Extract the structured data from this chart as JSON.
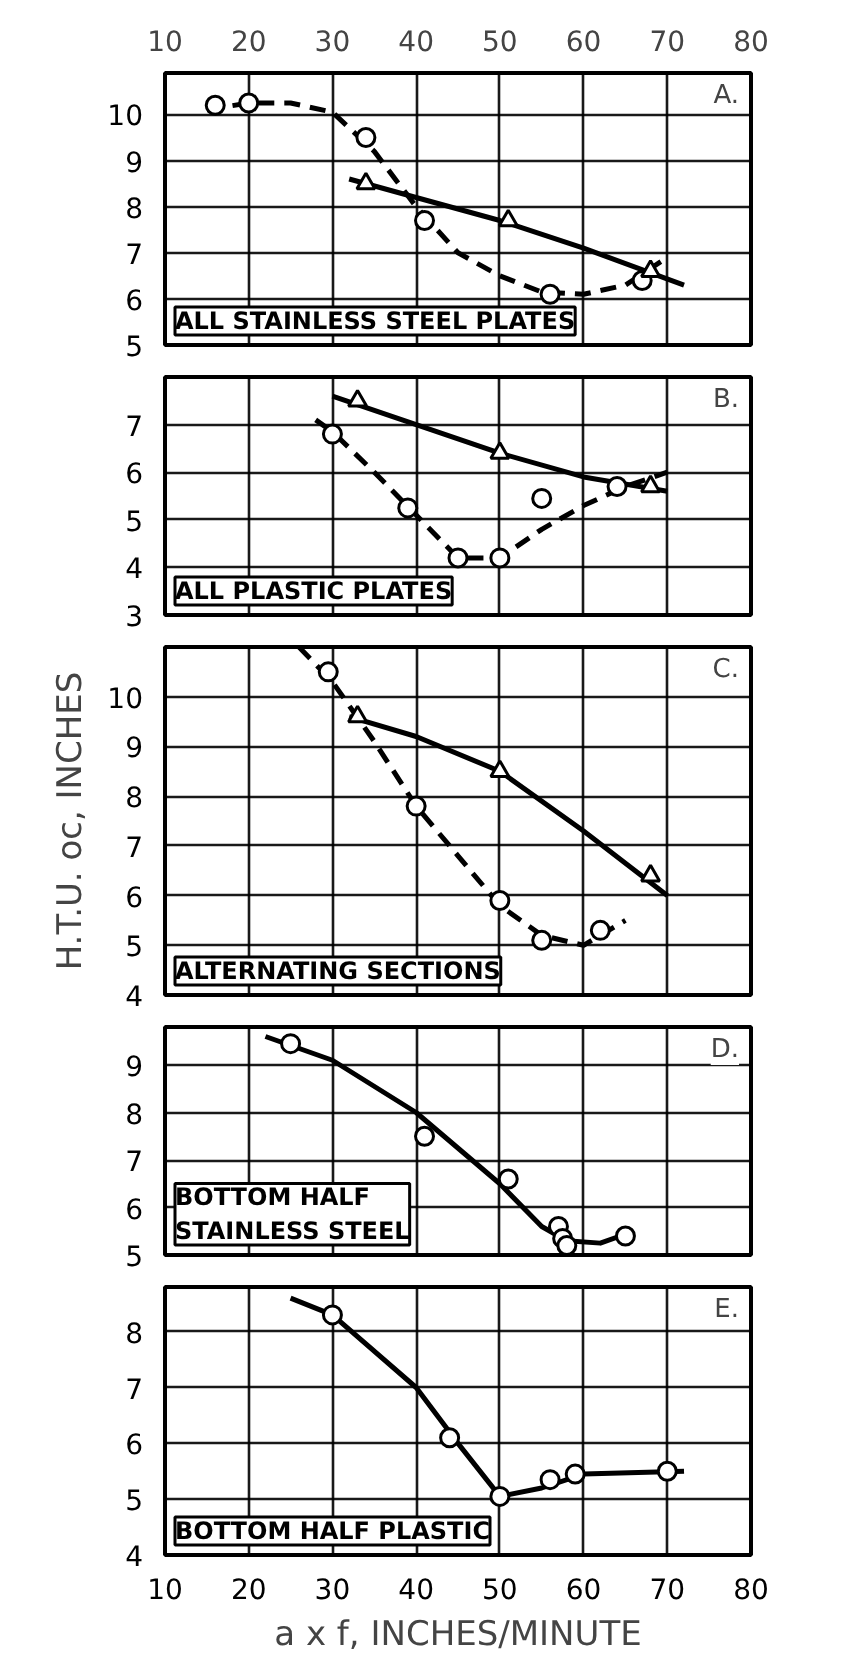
{
  "chart_data": [
    {
      "type": "scatter",
      "xlim": [
        10,
        80
      ],
      "xticks": [
        10,
        20,
        30,
        40,
        50,
        60,
        70,
        80
      ],
      "x2lim": [
        10,
        80
      ],
      "x2ticks": [
        10,
        20,
        30,
        40,
        50,
        60,
        70,
        80
      ],
      "ylim": [
        5,
        10.9
      ],
      "yticks": [
        5,
        6,
        7,
        8,
        9,
        10
      ],
      "grid": true,
      "tick_labels": "y",
      "annotations": [
        "A.",
        "ALL STAINLESS STEEL PLATES"
      ],
      "series": [
        {
          "type": "line",
          "line_style": "dashed",
          "marker": "none",
          "color": "#000000",
          "x": [
            15,
            20,
            25,
            30,
            35,
            40,
            45,
            50,
            55,
            60,
            65,
            70
          ],
          "values": [
            10.1,
            10.25,
            10.25,
            10.05,
            9.2,
            8.0,
            7.0,
            6.5,
            6.15,
            6.1,
            6.3,
            6.9
          ]
        },
        {
          "type": "line",
          "line_style": "solid",
          "marker": "none",
          "color": "#000000",
          "x": [
            32,
            40,
            50,
            60,
            72
          ],
          "values": [
            8.6,
            8.2,
            7.7,
            7.1,
            6.3
          ]
        },
        {
          "type": "scatter",
          "marker": "circle",
          "color": "#000000",
          "x": [
            16,
            20,
            34,
            41,
            56,
            67
          ],
          "values": [
            10.2,
            10.25,
            9.5,
            7.7,
            6.1,
            6.4
          ]
        },
        {
          "type": "scatter",
          "marker": "triangle",
          "color": "#000000",
          "x": [
            34,
            51,
            68
          ],
          "values": [
            8.5,
            7.7,
            6.6
          ]
        }
      ]
    },
    {
      "type": "scatter",
      "xlim": [
        10,
        80
      ],
      "xticks": [
        10,
        20,
        30,
        40,
        50,
        60,
        70,
        80
      ],
      "ylim": [
        3,
        8
      ],
      "yticks": [
        3,
        4,
        5,
        6,
        7
      ],
      "grid": true,
      "tick_labels": "y",
      "annotations": [
        "B.",
        "ALL PLASTIC PLATES"
      ],
      "series": [
        {
          "type": "line",
          "line_style": "dashed",
          "marker": "none",
          "color": "#000000",
          "x": [
            28,
            30,
            35,
            40,
            45,
            50,
            55,
            60,
            65,
            70
          ],
          "values": [
            7.1,
            6.85,
            6.0,
            5.1,
            4.2,
            4.2,
            4.8,
            5.3,
            5.7,
            6.0
          ]
        },
        {
          "type": "line",
          "line_style": "solid",
          "marker": "none",
          "color": "#000000",
          "x": [
            30,
            40,
            50,
            60,
            70
          ],
          "values": [
            7.6,
            7.0,
            6.4,
            5.9,
            5.6
          ]
        },
        {
          "type": "scatter",
          "marker": "circle",
          "color": "#000000",
          "x": [
            30,
            39,
            45,
            50,
            55,
            64
          ],
          "values": [
            6.8,
            5.25,
            4.2,
            4.2,
            5.45,
            5.7
          ]
        },
        {
          "type": "scatter",
          "marker": "triangle",
          "color": "#000000",
          "x": [
            33,
            50,
            68
          ],
          "values": [
            7.5,
            6.4,
            5.7
          ]
        }
      ]
    },
    {
      "type": "scatter",
      "xlim": [
        10,
        80
      ],
      "xticks": [
        10,
        20,
        30,
        40,
        50,
        60,
        70,
        80
      ],
      "ylim": [
        4,
        11
      ],
      "yticks": [
        4,
        5,
        6,
        7,
        8,
        9,
        10
      ],
      "grid": true,
      "tick_labels": "y",
      "ylabel": "H.T.U. oc, INCHES",
      "annotations": [
        "C.",
        "ALTERNATING SECTIONS"
      ],
      "series": [
        {
          "type": "line",
          "line_style": "dashed",
          "marker": "none",
          "color": "#000000",
          "x": [
            26,
            30,
            35,
            40,
            45,
            50,
            55,
            60,
            65
          ],
          "values": [
            11,
            10.3,
            9.1,
            7.8,
            6.8,
            5.8,
            5.2,
            5.0,
            5.5
          ]
        },
        {
          "type": "line",
          "line_style": "solid",
          "marker": "none",
          "color": "#000000",
          "x": [
            32,
            40,
            50,
            60,
            70
          ],
          "values": [
            9.6,
            9.2,
            8.5,
            7.3,
            6.0
          ]
        },
        {
          "type": "scatter",
          "marker": "circle",
          "color": "#000000",
          "x": [
            29.5,
            40,
            50,
            55,
            62
          ],
          "values": [
            10.5,
            7.8,
            5.9,
            5.1,
            5.3
          ]
        },
        {
          "type": "scatter",
          "marker": "triangle",
          "color": "#000000",
          "x": [
            33,
            50,
            68
          ],
          "values": [
            9.6,
            8.5,
            6.4
          ]
        }
      ]
    },
    {
      "type": "scatter",
      "xlim": [
        10,
        80
      ],
      "xticks": [
        10,
        20,
        30,
        40,
        50,
        60,
        70,
        80
      ],
      "ylim": [
        5,
        9.8
      ],
      "yticks": [
        5,
        6,
        7,
        8,
        9
      ],
      "grid": true,
      "tick_labels": "y",
      "annotations": [
        "D.",
        "BOTTOM HALF\nSTAINLESS STEEL"
      ],
      "series": [
        {
          "type": "line",
          "line_style": "solid",
          "marker": "none",
          "color": "#000000",
          "x": [
            22,
            30,
            40,
            50,
            55,
            58,
            62,
            66
          ],
          "values": [
            9.6,
            9.1,
            8.0,
            6.5,
            5.6,
            5.3,
            5.25,
            5.5
          ]
        },
        {
          "type": "scatter",
          "marker": "circle",
          "color": "#000000",
          "x": [
            25,
            41,
            51,
            57,
            57.5,
            58,
            65
          ],
          "values": [
            9.45,
            7.5,
            6.6,
            5.6,
            5.35,
            5.2,
            5.4
          ]
        }
      ]
    },
    {
      "type": "scatter",
      "xlim": [
        10,
        80
      ],
      "xticks": [
        10,
        20,
        30,
        40,
        50,
        60,
        70,
        80
      ],
      "ylim": [
        4,
        8.8
      ],
      "yticks": [
        4,
        5,
        6,
        7,
        8
      ],
      "grid": true,
      "xlabel": "a x f, INCHES/MINUTE",
      "annotations": [
        "E.",
        "BOTTOM HALF PLASTIC"
      ],
      "series": [
        {
          "type": "line",
          "line_style": "solid",
          "marker": "none",
          "color": "#000000",
          "x": [
            25,
            30,
            40,
            45,
            50,
            55,
            60,
            72
          ],
          "values": [
            8.6,
            8.3,
            7.0,
            6.0,
            5.05,
            5.2,
            5.45,
            5.5
          ]
        },
        {
          "type": "scatter",
          "marker": "circle",
          "color": "#000000",
          "x": [
            30,
            44,
            50,
            56,
            59,
            70
          ],
          "values": [
            8.3,
            6.1,
            5.05,
            5.35,
            5.45,
            5.5
          ]
        }
      ]
    }
  ]
}
